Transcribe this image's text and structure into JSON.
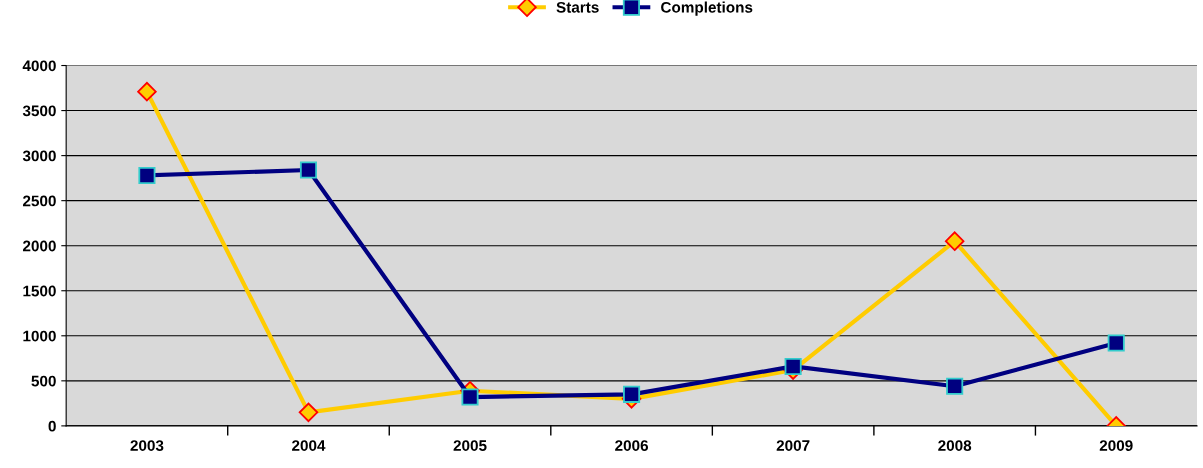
{
  "chart_data": {
    "type": "line",
    "categories": [
      "2003",
      "2004",
      "2005",
      "2006",
      "2007",
      "2008",
      "2009"
    ],
    "series": [
      {
        "name": "Starts",
        "color": "#ffcc00",
        "marker": "diamond",
        "values": [
          3710,
          150,
          390,
          300,
          620,
          2050,
          0
        ]
      },
      {
        "name": "Completions",
        "color": "#000080",
        "marker": "square",
        "values": [
          2780,
          2840,
          320,
          350,
          660,
          440,
          920
        ]
      }
    ],
    "ylim": [
      0,
      4000
    ],
    "yticks": [
      0,
      500,
      1000,
      1500,
      2000,
      2500,
      3000,
      3500,
      4000
    ],
    "grid": "y",
    "legend": "top",
    "line_style": "solid"
  }
}
